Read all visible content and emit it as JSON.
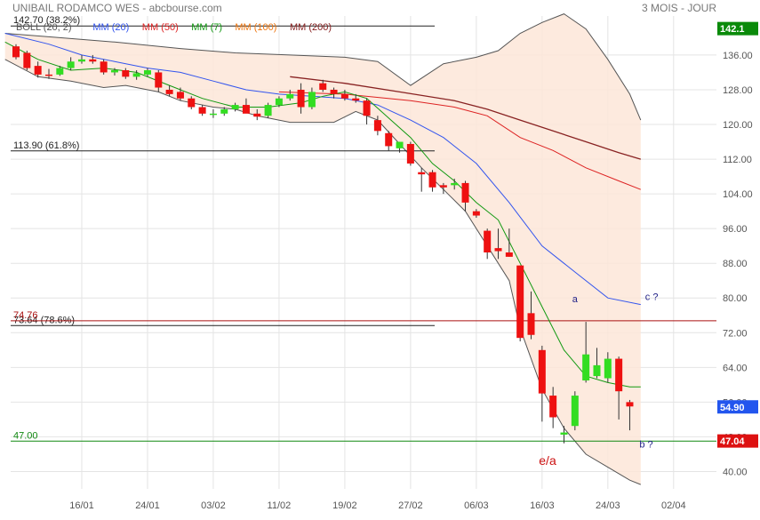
{
  "header": {
    "instrument": "UNIBAIL RODAMCO WES - abcbourse.com",
    "period": "3 MOIS - JOUR"
  },
  "legend": [
    {
      "label": "BOLL (20, 2)",
      "color": "#555555"
    },
    {
      "label": "MM (20)",
      "color": "#3355ee"
    },
    {
      "label": "MM (50)",
      "color": "#dd2222"
    },
    {
      "label": "MM (7)",
      "color": "#119911"
    },
    {
      "label": "MM (100)",
      "color": "#ee7711"
    },
    {
      "label": "MM (200)",
      "color": "#882222"
    }
  ],
  "price_badges": [
    {
      "label": "142.1",
      "value": 142.1,
      "color": "#0a8a0a"
    },
    {
      "label": "54.90",
      "value": 54.9,
      "color": "#2255ee"
    },
    {
      "label": "47.04",
      "value": 47.04,
      "color": "#dd1111"
    }
  ],
  "horizontal_lines": [
    {
      "label": "142.70 (38.2%)",
      "value": 142.7,
      "color": "#222222",
      "span": "partial"
    },
    {
      "label": "113.90 (61.8%)",
      "value": 113.9,
      "color": "#222222",
      "span": "partial"
    },
    {
      "label": "73.64 (78.6%)",
      "value": 73.64,
      "color": "#222222",
      "span": "partial"
    },
    {
      "label": "74.76",
      "value": 74.76,
      "color": "#aa1111",
      "span": "full"
    },
    {
      "label": "47.00",
      "value": 47.0,
      "color": "#118811",
      "span": "full"
    }
  ],
  "annotations": [
    {
      "text": "a",
      "x": 51,
      "y": 79,
      "color": "#222288"
    },
    {
      "text": "c ?",
      "x": 58,
      "y": 79.5,
      "color": "#222288"
    },
    {
      "text": "b ?",
      "x": 57.5,
      "y": 45.5,
      "color": "#222288"
    },
    {
      "text": "e/a",
      "x": 48.5,
      "y": 41.5,
      "color": "#cc1111"
    }
  ],
  "chart_data": {
    "type": "candlestick",
    "ylim": [
      36,
      145
    ],
    "xlim": [
      -1.5,
      61
    ],
    "yticks": [
      40,
      48,
      56,
      64,
      72,
      80,
      88,
      96,
      104,
      112,
      120,
      128,
      136
    ],
    "yticks_labels": [
      "40.00",
      "48.00",
      "56.00",
      "64.00",
      "72.00",
      "80.00",
      "88.00",
      "96.00",
      "104.00",
      "112.00",
      "120.00",
      "128.00",
      "136.00"
    ],
    "xticks": [
      {
        "i": 6,
        "label": "16/01"
      },
      {
        "i": 12,
        "label": "24/01"
      },
      {
        "i": 18,
        "label": "03/02"
      },
      {
        "i": 24,
        "label": "11/02"
      },
      {
        "i": 30,
        "label": "19/02"
      },
      {
        "i": 36,
        "label": "27/02"
      },
      {
        "i": 42,
        "label": "06/03"
      },
      {
        "i": 48,
        "label": "16/03"
      },
      {
        "i": 54,
        "label": "24/03"
      },
      {
        "i": 60,
        "label": "02/04"
      }
    ],
    "grid": true,
    "up_color": "#33dd22",
    "down_color": "#ee1111",
    "candles": [
      [
        138,
        138.5,
        135,
        135.5
      ],
      [
        136.5,
        137,
        132.5,
        133
      ],
      [
        133.5,
        134.5,
        130.8,
        131.5
      ],
      [
        131.5,
        132.8,
        130.5,
        131.2
      ],
      [
        131.5,
        133.5,
        131.2,
        133
      ],
      [
        133,
        135.5,
        132.5,
        134.5
      ],
      [
        134.5,
        136,
        134,
        135
      ],
      [
        135,
        136,
        134,
        134.5
      ],
      [
        134.5,
        135,
        131.5,
        132
      ],
      [
        132,
        133,
        131.3,
        132.5
      ],
      [
        132.5,
        133,
        130.5,
        131
      ],
      [
        131,
        132.5,
        130.3,
        131.8
      ],
      [
        131.5,
        133,
        131,
        132.5
      ],
      [
        132,
        132.5,
        127.5,
        128.5
      ],
      [
        128,
        129,
        126.5,
        127
      ],
      [
        127.5,
        128.5,
        125.5,
        126
      ],
      [
        126,
        126.5,
        123.5,
        124
      ],
      [
        124,
        124.5,
        122,
        122.5
      ],
      [
        122.5,
        123.5,
        121.5,
        122.5
      ],
      [
        122.5,
        124,
        122,
        123.5
      ],
      [
        123.5,
        125,
        123,
        124.5
      ],
      [
        124.5,
        126,
        123.5,
        122.5
      ],
      [
        122.5,
        123.5,
        121,
        121.8
      ],
      [
        122,
        125,
        121.5,
        124.5
      ],
      [
        124.5,
        126.5,
        124,
        126
      ],
      [
        126,
        128,
        125.5,
        127
      ],
      [
        128,
        129.5,
        122.5,
        124
      ],
      [
        124,
        128.5,
        123.5,
        127.5
      ],
      [
        129.5,
        130.3,
        127.5,
        128
      ],
      [
        128,
        128.5,
        126,
        127
      ],
      [
        127,
        128,
        125.5,
        126
      ],
      [
        126,
        127,
        125,
        125.5
      ],
      [
        125.5,
        126,
        120,
        122
      ],
      [
        121,
        122,
        117.5,
        118.5
      ],
      [
        118,
        118.5,
        114,
        115
      ],
      [
        114.5,
        116,
        113.5,
        116
      ],
      [
        115.5,
        116,
        110.5,
        111
      ],
      [
        109,
        110,
        104.5,
        108.5
      ],
      [
        109,
        109.5,
        104.5,
        105.5
      ],
      [
        106,
        106.5,
        104,
        105.5
      ],
      [
        106,
        107.5,
        105,
        106.5
      ],
      [
        106.5,
        107,
        100,
        102
      ],
      [
        100,
        100.5,
        98.5,
        99
      ],
      [
        95.5,
        96,
        89,
        90.5
      ],
      [
        91.5,
        96,
        89,
        90.8
      ],
      [
        90.5,
        96,
        89.5,
        89.5
      ],
      [
        87.5,
        87.5,
        70,
        70.8
      ],
      [
        76.5,
        81.5,
        70.5,
        71.5
      ],
      [
        68,
        69,
        51.5,
        58
      ],
      [
        57.5,
        59.5,
        50,
        52.5
      ],
      [
        48.5,
        50.5,
        46.5,
        49
      ],
      [
        50.5,
        58.5,
        49.5,
        57.5
      ],
      [
        61,
        74.5,
        60.5,
        67
      ],
      [
        62,
        68.5,
        61.5,
        64.5
      ],
      [
        61.5,
        67.5,
        60.5,
        66
      ],
      [
        66,
        66.5,
        52,
        58.5
      ],
      [
        56,
        56.5,
        49.5,
        55
      ]
    ],
    "bollinger_upper": [
      [
        -1,
        141
      ],
      [
        4,
        140
      ],
      [
        9,
        139
      ],
      [
        15,
        137.5
      ],
      [
        20,
        136.5
      ],
      [
        25,
        136
      ],
      [
        30,
        135.5
      ],
      [
        33,
        134.5
      ],
      [
        36,
        129
      ],
      [
        39,
        134
      ],
      [
        42,
        135.5
      ],
      [
        44,
        137
      ],
      [
        46,
        141
      ],
      [
        48,
        143.5
      ],
      [
        50,
        145.5
      ],
      [
        52,
        142
      ],
      [
        54,
        135
      ],
      [
        56,
        127
      ],
      [
        57,
        121
      ]
    ],
    "bollinger_lower": [
      [
        -1,
        135
      ],
      [
        2,
        131
      ],
      [
        5,
        130
      ],
      [
        8,
        128.5
      ],
      [
        10,
        129
      ],
      [
        13,
        127.5
      ],
      [
        15,
        125.5
      ],
      [
        18,
        124
      ],
      [
        20,
        123.5
      ],
      [
        22,
        122
      ],
      [
        25,
        120.5
      ],
      [
        29,
        120.5
      ],
      [
        31,
        123
      ],
      [
        33,
        121
      ],
      [
        35,
        115.5
      ],
      [
        37,
        110
      ],
      [
        39,
        105
      ],
      [
        41,
        100
      ],
      [
        43,
        92
      ],
      [
        45,
        84
      ],
      [
        46,
        73
      ],
      [
        47,
        66
      ],
      [
        48,
        59
      ],
      [
        50,
        50
      ],
      [
        52,
        44
      ],
      [
        54,
        41
      ],
      [
        56,
        38
      ],
      [
        57,
        37
      ]
    ],
    "mm7": [
      [
        -1,
        139
      ],
      [
        2,
        135
      ],
      [
        5,
        132.5
      ],
      [
        8,
        133
      ],
      [
        11,
        132
      ],
      [
        14,
        129
      ],
      [
        17,
        126
      ],
      [
        20,
        124
      ],
      [
        23,
        124
      ],
      [
        26,
        125
      ],
      [
        28,
        126.5
      ],
      [
        30,
        127.5
      ],
      [
        32,
        126
      ],
      [
        34,
        121.5
      ],
      [
        36,
        117
      ],
      [
        38,
        111
      ],
      [
        40,
        107
      ],
      [
        42,
        102
      ],
      [
        44,
        98
      ],
      [
        46,
        88
      ],
      [
        48,
        78
      ],
      [
        50,
        68
      ],
      [
        52,
        62
      ],
      [
        54,
        60.5
      ],
      [
        56,
        59.5
      ],
      [
        57,
        59.5
      ]
    ],
    "mm20": [
      [
        -1,
        141
      ],
      [
        3,
        138.5
      ],
      [
        6,
        136
      ],
      [
        9,
        134.5
      ],
      [
        12,
        133
      ],
      [
        15,
        132
      ],
      [
        18,
        130
      ],
      [
        21,
        128
      ],
      [
        24,
        127
      ],
      [
        27,
        126.5
      ],
      [
        30,
        126
      ],
      [
        33,
        124.5
      ],
      [
        36,
        121
      ],
      [
        39,
        117
      ],
      [
        42,
        111
      ],
      [
        45,
        102
      ],
      [
        48,
        92
      ],
      [
        51,
        86
      ],
      [
        54,
        80
      ],
      [
        57,
        78.5
      ]
    ],
    "mm50": [
      [
        24,
        127.5
      ],
      [
        30,
        127
      ],
      [
        36,
        125.5
      ],
      [
        40,
        124
      ],
      [
        43,
        122
      ],
      [
        46,
        117
      ],
      [
        49,
        114
      ],
      [
        52,
        110
      ],
      [
        55,
        107
      ],
      [
        57,
        105
      ]
    ],
    "mm200": [
      [
        25,
        131
      ],
      [
        30,
        129.5
      ],
      [
        35,
        127.5
      ],
      [
        40,
        125.5
      ],
      [
        43,
        123.5
      ],
      [
        46,
        121
      ],
      [
        49,
        118.5
      ],
      [
        52,
        116
      ],
      [
        55,
        113.5
      ],
      [
        57,
        112
      ]
    ]
  }
}
